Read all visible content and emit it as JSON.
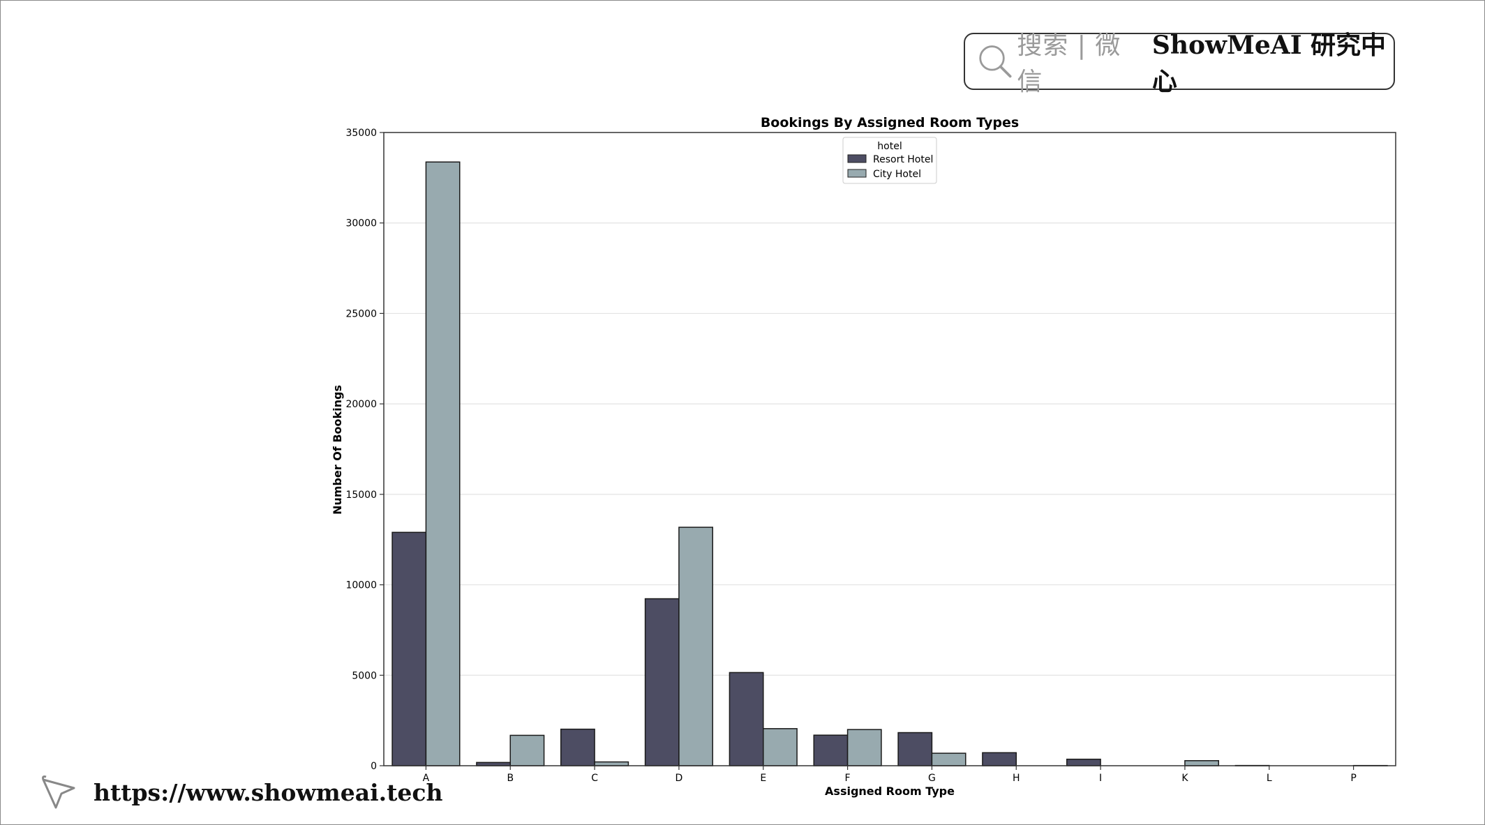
{
  "brand": {
    "search_text": "搜索 | 微信",
    "name": "ShowMeAI 研究中心",
    "icon": "magnifier-icon"
  },
  "footer": {
    "url": "https://www.showmeai.tech",
    "icon": "cursor-arrow-icon"
  },
  "chart_data": {
    "type": "bar",
    "title": "Bookings By Assigned Room Types",
    "xlabel": "Assigned Room Type",
    "ylabel": "Number Of Bookings",
    "ylim": [
      0,
      35000
    ],
    "yticks": [
      0,
      5000,
      10000,
      15000,
      20000,
      25000,
      30000,
      35000
    ],
    "grid": "horizontal",
    "legend": {
      "title": "hotel",
      "position": "top-center"
    },
    "categories": [
      "A",
      "B",
      "C",
      "D",
      "E",
      "F",
      "G",
      "H",
      "I",
      "K",
      "L",
      "P"
    ],
    "series": [
      {
        "name": "Resort Hotel",
        "color": "#4d4d63",
        "values": [
          12900,
          180,
          2020,
          9230,
          5150,
          1690,
          1830,
          720,
          360,
          0,
          14,
          0
        ]
      },
      {
        "name": "City Hotel",
        "color": "#98aaaf",
        "values": [
          33370,
          1680,
          210,
          13180,
          2050,
          2000,
          690,
          0,
          0,
          280,
          0,
          12
        ]
      }
    ]
  }
}
